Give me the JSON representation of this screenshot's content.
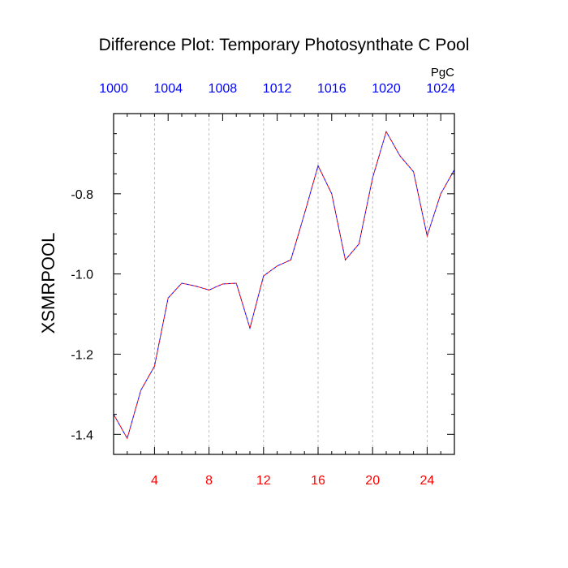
{
  "chart_data": {
    "type": "line",
    "title": "Difference Plot: Temporary Photosynthate C Pool",
    "ylabel": "XSMRPOOL",
    "units_label": "PgC",
    "xlabel": "",
    "xlim": [
      1,
      26
    ],
    "ylim": [
      -1.45,
      -0.6
    ],
    "bottom_axis": {
      "ticks": [
        4,
        8,
        12,
        16,
        20,
        24
      ],
      "tick_labels": [
        "4",
        "8",
        "12",
        "16",
        "20",
        "24"
      ],
      "color": "#ff0000"
    },
    "top_axis": {
      "ticks": [
        1000,
        1004,
        1008,
        1012,
        1016,
        1020,
        1024
      ],
      "tick_labels": [
        "1000",
        "1004",
        "1008",
        "1012",
        "1016",
        "1020",
        "1024"
      ],
      "offset": 999,
      "color": "#0000ff"
    },
    "left_axis": {
      "ticks": [
        -1.4,
        -1.2,
        -1.0,
        -0.8
      ],
      "tick_labels": [
        "-1.4",
        "-1.2",
        "-1.0",
        "-0.8"
      ]
    },
    "grid": "vertical dashed",
    "series": [
      {
        "color_a": "#0000ff",
        "color_b": "#ff0000",
        "style": "dashed",
        "x": [
          1,
          2,
          3,
          4,
          5,
          6,
          7,
          8,
          9,
          10,
          11,
          12,
          13,
          14,
          15,
          16,
          17,
          18,
          19,
          20,
          21,
          22,
          23,
          24,
          25,
          26
        ],
        "values": [
          -1.35,
          -1.41,
          -1.29,
          -1.23,
          -1.06,
          -1.023,
          -1.03,
          -1.04,
          -1.025,
          -1.023,
          -1.135,
          -1.005,
          -0.98,
          -0.965,
          -0.85,
          -0.73,
          -0.8,
          -0.965,
          -0.925,
          -0.76,
          -0.645,
          -0.705,
          -0.745,
          -0.905,
          -0.8,
          -0.74
        ]
      }
    ]
  }
}
